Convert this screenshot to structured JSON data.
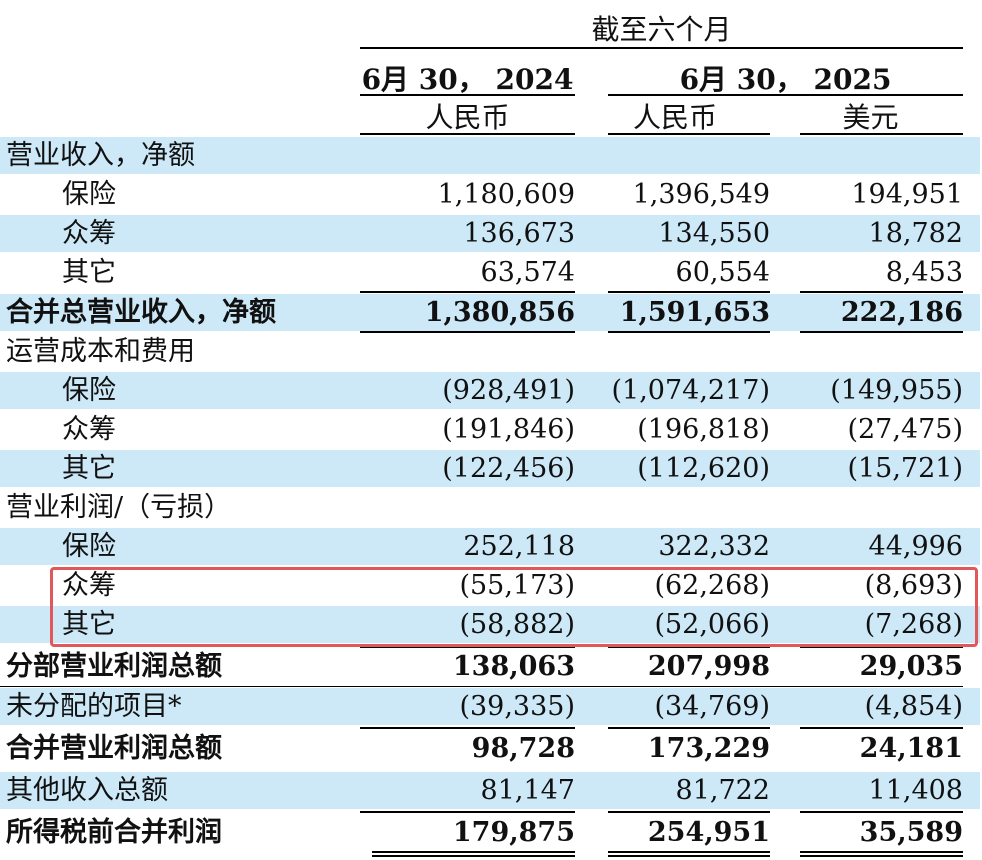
{
  "header": {
    "period": "截至六个月",
    "date_2024": "6月 30， 2024",
    "date_2025": "6月 30， 2025",
    "currency_rmb_2024": "人民币",
    "currency_rmb_2025": "人民币",
    "currency_usd_2025": "美元"
  },
  "rows": [
    {
      "label": "营业收入，净额",
      "v1": "",
      "v2": "",
      "v3": ""
    },
    {
      "label": "保险",
      "v1": "1,180,609",
      "v2": "1,396,549",
      "v3": "194,951"
    },
    {
      "label": "众筹",
      "v1": "136,673",
      "v2": "134,550",
      "v3": "18,782"
    },
    {
      "label": "其它",
      "v1": "63,574",
      "v2": "60,554",
      "v3": "8,453"
    },
    {
      "label": "合并总营业收入，净额",
      "v1": "1,380,856",
      "v2": "1,591,653",
      "v3": "222,186"
    },
    {
      "label": "运营成本和费用",
      "v1": "",
      "v2": "",
      "v3": ""
    },
    {
      "label": "保险",
      "v1": "(928,491)",
      "v2": "(1,074,217)",
      "v3": "(149,955)"
    },
    {
      "label": "众筹",
      "v1": "(191,846)",
      "v2": "(196,818)",
      "v3": "(27,475)"
    },
    {
      "label": "其它",
      "v1": "(122,456)",
      "v2": "(112,620)",
      "v3": "(15,721)"
    },
    {
      "label": "营业利润/（亏损）",
      "v1": "",
      "v2": "",
      "v3": ""
    },
    {
      "label": "保险",
      "v1": "252,118",
      "v2": "322,332",
      "v3": "44,996"
    },
    {
      "label": "众筹",
      "v1": "(55,173)",
      "v2": "(62,268)",
      "v3": "(8,693)"
    },
    {
      "label": "其它",
      "v1": "(58,882)",
      "v2": "(52,066)",
      "v3": "(7,268)"
    },
    {
      "label": "分部营业利润总额",
      "v1": "138,063",
      "v2": "207,998",
      "v3": "29,035"
    },
    {
      "label": "未分配的项目*",
      "v1": "(39,335)",
      "v2": "(34,769)",
      "v3": "(4,854)"
    },
    {
      "label": "合并营业利润总额",
      "v1": "98,728",
      "v2": "173,229",
      "v3": "24,181"
    },
    {
      "label": "其他收入总额",
      "v1": "81,147",
      "v2": "81,722",
      "v3": "11,408"
    },
    {
      "label": "所得税前合并利润",
      "v1": "179,875",
      "v2": "254,951",
      "v3": "35,589"
    }
  ],
  "colors": {
    "row_shade": "#cde9f8",
    "highlight_border": "#e0585a"
  }
}
